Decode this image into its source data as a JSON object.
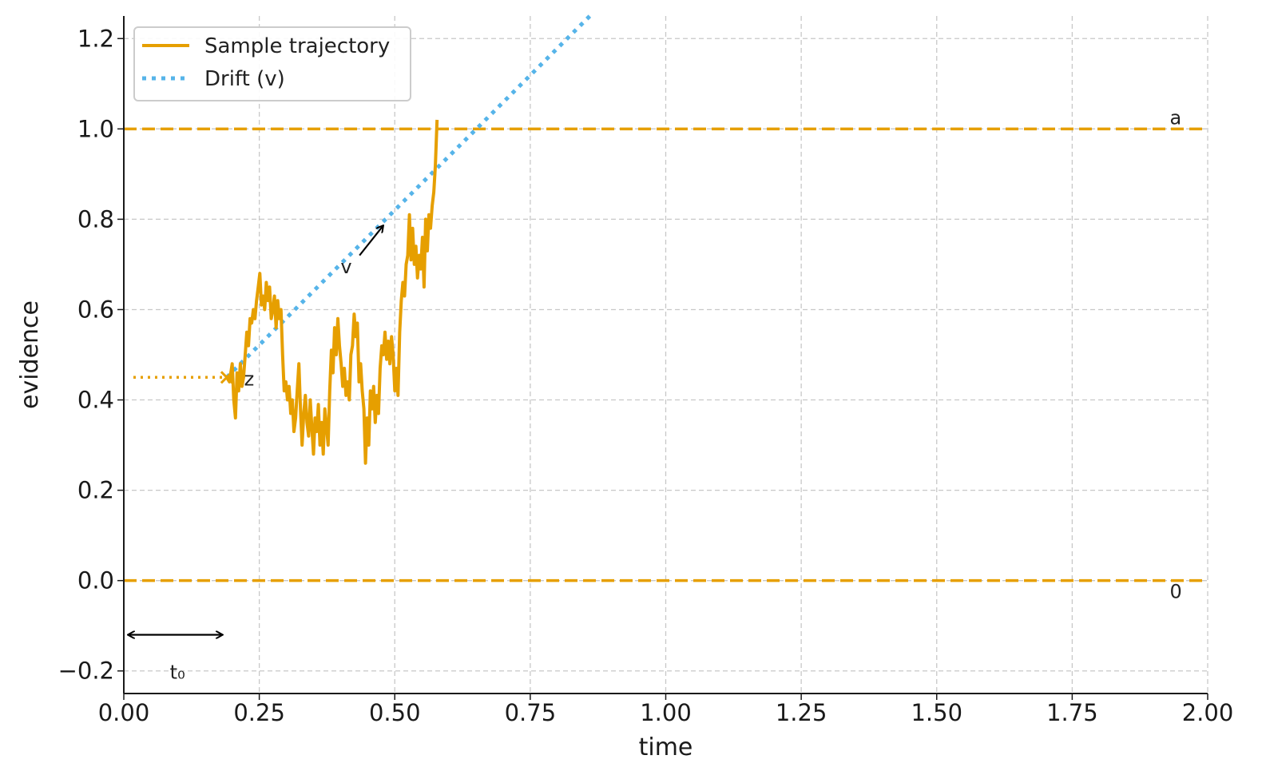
{
  "colors": {
    "trajectory": "#E69F00",
    "drift": "#56B4E9",
    "annotation": "#000000",
    "grid": "#c8c8c8",
    "axis": "#1a1a1a"
  },
  "chart_data": {
    "type": "line",
    "xlabel": "time",
    "ylabel": "evidence",
    "xlim": [
      0.0,
      2.0
    ],
    "ylim": [
      -0.25,
      1.25
    ],
    "x_ticks": [
      "0.00",
      "0.25",
      "0.50",
      "0.75",
      "1.00",
      "1.25",
      "1.50",
      "1.75",
      "2.00"
    ],
    "x_tick_values": [
      0.0,
      0.25,
      0.5,
      0.75,
      1.0,
      1.25,
      1.5,
      1.75,
      2.0
    ],
    "y_ticks": [
      "−0.2",
      "0.0",
      "0.2",
      "0.4",
      "0.6",
      "0.8",
      "1.0",
      "1.2"
    ],
    "y_tick_values": [
      -0.2,
      0.0,
      0.2,
      0.4,
      0.6,
      0.8,
      1.0,
      1.2
    ],
    "grid": true,
    "legend_position": "top-left",
    "series": [
      {
        "name": "Sample trajectory",
        "style": "solid",
        "x": [
          0.19,
          0.195,
          0.2,
          0.203,
          0.206,
          0.209,
          0.212,
          0.215,
          0.218,
          0.221,
          0.224,
          0.227,
          0.23,
          0.233,
          0.236,
          0.239,
          0.242,
          0.245,
          0.248,
          0.251,
          0.254,
          0.257,
          0.26,
          0.263,
          0.266,
          0.269,
          0.272,
          0.275,
          0.278,
          0.281,
          0.284,
          0.287,
          0.29,
          0.293,
          0.296,
          0.299,
          0.302,
          0.305,
          0.308,
          0.311,
          0.314,
          0.317,
          0.32,
          0.323,
          0.326,
          0.329,
          0.332,
          0.335,
          0.338,
          0.341,
          0.344,
          0.347,
          0.35,
          0.353,
          0.356,
          0.359,
          0.362,
          0.365,
          0.368,
          0.371,
          0.374,
          0.377,
          0.38,
          0.383,
          0.386,
          0.389,
          0.392,
          0.395,
          0.398,
          0.401,
          0.404,
          0.407,
          0.41,
          0.413,
          0.416,
          0.419,
          0.422,
          0.425,
          0.428,
          0.431,
          0.434,
          0.437,
          0.44,
          0.443,
          0.446,
          0.449,
          0.452,
          0.455,
          0.458,
          0.461,
          0.464,
          0.467,
          0.47,
          0.473,
          0.476,
          0.479,
          0.482,
          0.485,
          0.488,
          0.491,
          0.494,
          0.497,
          0.5,
          0.503,
          0.506,
          0.509,
          0.512,
          0.515,
          0.518,
          0.521,
          0.524,
          0.527,
          0.53,
          0.533,
          0.536,
          0.539,
          0.542,
          0.545,
          0.548,
          0.551,
          0.554,
          0.557,
          0.56,
          0.563,
          0.566,
          0.569,
          0.572,
          0.575,
          0.578
        ],
        "y": [
          0.45,
          0.44,
          0.48,
          0.4,
          0.36,
          0.46,
          0.42,
          0.48,
          0.43,
          0.45,
          0.5,
          0.55,
          0.52,
          0.58,
          0.57,
          0.6,
          0.58,
          0.62,
          0.65,
          0.68,
          0.61,
          0.63,
          0.6,
          0.66,
          0.62,
          0.65,
          0.58,
          0.6,
          0.63,
          0.56,
          0.62,
          0.58,
          0.6,
          0.5,
          0.42,
          0.44,
          0.4,
          0.43,
          0.37,
          0.4,
          0.33,
          0.36,
          0.42,
          0.48,
          0.38,
          0.3,
          0.37,
          0.41,
          0.35,
          0.32,
          0.4,
          0.34,
          0.28,
          0.36,
          0.33,
          0.39,
          0.3,
          0.35,
          0.28,
          0.38,
          0.34,
          0.3,
          0.42,
          0.51,
          0.46,
          0.56,
          0.5,
          0.58,
          0.52,
          0.48,
          0.43,
          0.47,
          0.41,
          0.44,
          0.4,
          0.5,
          0.52,
          0.59,
          0.54,
          0.57,
          0.44,
          0.48,
          0.42,
          0.38,
          0.26,
          0.36,
          0.3,
          0.42,
          0.38,
          0.43,
          0.35,
          0.41,
          0.37,
          0.47,
          0.52,
          0.5,
          0.55,
          0.49,
          0.53,
          0.48,
          0.54,
          0.5,
          0.42,
          0.47,
          0.41,
          0.55,
          0.62,
          0.66,
          0.63,
          0.7,
          0.72,
          0.81,
          0.71,
          0.78,
          0.7,
          0.74,
          0.67,
          0.72,
          0.69,
          0.76,
          0.65,
          0.8,
          0.73,
          0.81,
          0.78,
          0.83,
          0.86,
          0.92,
          1.02
        ]
      },
      {
        "name": "Drift (v)",
        "style": "dotted",
        "x": [
          0.19,
          0.86
        ],
        "y": [
          0.45,
          1.25
        ]
      }
    ],
    "reference_lines": [
      {
        "label": "a",
        "y": 1.0,
        "style": "dashed"
      },
      {
        "label": "0",
        "y": 0.0,
        "style": "dashed"
      }
    ],
    "annotations": {
      "z_label": "z",
      "z_level": 0.45,
      "v_label": "v",
      "t0_label": "t₀",
      "t0_range": [
        0.0,
        0.19
      ]
    }
  }
}
